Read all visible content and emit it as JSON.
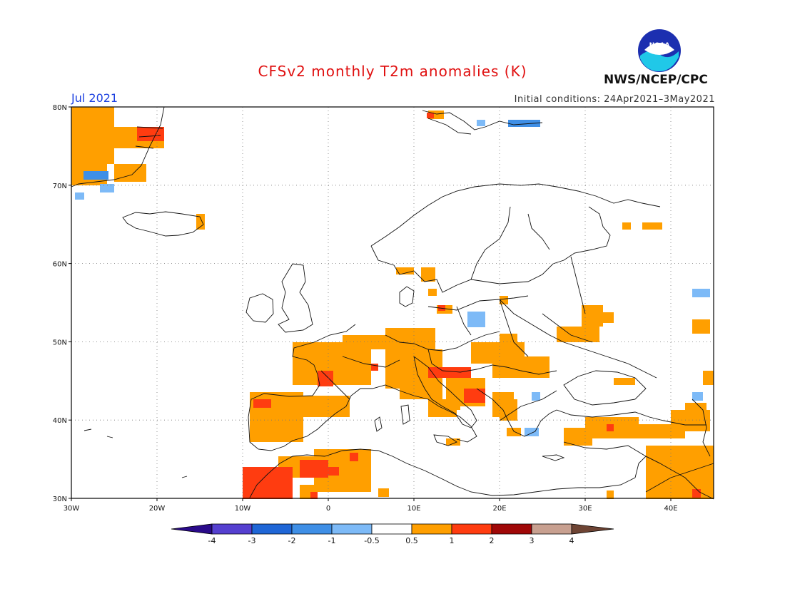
{
  "header": {
    "title": "CFSv2 monthly T2m anomalies (K)",
    "month": "Jul 2021",
    "initial_conditions": "Initial conditions: 24Apr2021–3May2021",
    "agency": "NWS/NCEP/CPC",
    "logo_text": "NOAA"
  },
  "colors": {
    "title": "#e01010",
    "month": "#1a3fe0",
    "lt_m4": "#2a0a8a",
    "m4_m3": "#5540d0",
    "m3_m2": "#1f66d6",
    "m2_m1": "#3f8fe6",
    "m1_m05": "#7dbaf7",
    "neutral": "#ffffff",
    "p05_p1": "#ff9f00",
    "p1_p2": "#ff3c10",
    "p2_p3": "#a00808",
    "p3_p4": "#c8a090",
    "gt_p4": "#6e4434"
  },
  "axes": {
    "lon_labels": [
      "30W",
      "20W",
      "10W",
      "0",
      "10E",
      "20E",
      "30E",
      "40E"
    ],
    "lat_labels": [
      "30N",
      "40N",
      "50N",
      "60N",
      "70N",
      "80N"
    ],
    "lon_range": [
      -30,
      45
    ],
    "lat_range": [
      30,
      80
    ],
    "grid": "dotted, every 10 degrees"
  },
  "colorbar": {
    "levels": [
      "-4",
      "-3",
      "-2",
      "-1",
      "-0.5",
      "0.5",
      "1",
      "2",
      "3",
      "4"
    ]
  }
}
